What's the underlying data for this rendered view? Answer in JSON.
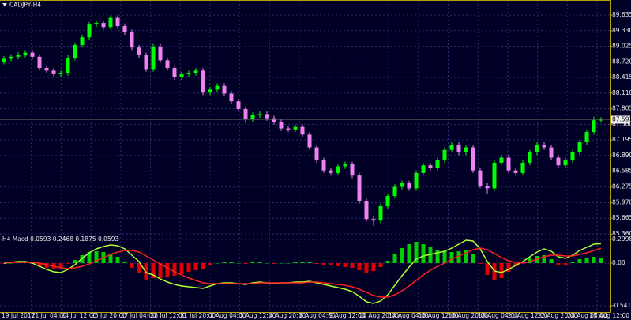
{
  "chart_data": [
    {
      "type": "candlestick",
      "title": "CADJPY,H4",
      "up_color": "#00ff00",
      "down_color": "#ee82ee",
      "grid": true,
      "current_price": 87.591,
      "ylim": [
        85.36,
        89.898
      ],
      "yticks": [
        89.635,
        {
          "value": 89.33,
          "label": "89.330"
        },
        89.025,
        {
          "value": 88.72,
          "label": "88.720"
        },
        88.415,
        {
          "value": 88.11,
          "label": "88.110"
        },
        87.805,
        {
          "value": 87.5,
          "label": "87.500"
        },
        87.195,
        {
          "value": 86.89,
          "label": "86.890"
        },
        86.585,
        86.275,
        {
          "value": 85.97,
          "label": "85.970"
        },
        85.665,
        {
          "value": 85.36,
          "label": "85.360"
        }
      ],
      "xlabels": [
        "19 Jul 2017",
        "21 Jul 04:00",
        "24 Jul 12:00",
        "25 Jul 20:00",
        "27 Jul 04:00",
        "28 Jul 12:00",
        "31 Jul 20:00",
        "2 Aug 04:00",
        "3 Aug 12:00",
        "4 Aug 20:00",
        "8 Aug 04:00",
        "9 Aug 12:00",
        "10 Aug 20:00",
        "14 Aug 04:00",
        "15 Aug 12:00",
        "16 Aug 20:00",
        "18 Aug 04:00",
        "21 Aug 12:00",
        "22 Aug 20:00",
        "24 Aug 04:00",
        "25 Aug 12:00"
      ],
      "candles": [
        [
          88.72,
          88.83,
          88.67,
          88.78
        ],
        [
          88.78,
          88.87,
          88.73,
          88.82
        ],
        [
          88.82,
          88.91,
          88.77,
          88.86
        ],
        [
          88.86,
          88.95,
          88.81,
          88.9
        ],
        [
          88.9,
          88.95,
          88.77,
          88.82
        ],
        [
          88.82,
          88.87,
          88.55,
          88.6
        ],
        [
          88.6,
          88.65,
          88.5,
          88.55
        ],
        [
          88.55,
          88.6,
          88.43,
          88.48
        ],
        [
          88.48,
          88.55,
          88.43,
          88.5
        ],
        [
          88.5,
          88.85,
          88.45,
          88.8
        ],
        [
          88.8,
          89.1,
          88.75,
          89.05
        ],
        [
          89.05,
          89.25,
          89.0,
          89.2
        ],
        [
          89.2,
          89.5,
          89.15,
          89.45
        ],
        [
          89.45,
          89.53,
          89.4,
          89.48
        ],
        [
          89.48,
          89.53,
          89.35,
          89.4
        ],
        [
          89.4,
          89.63,
          89.35,
          89.58
        ],
        [
          89.58,
          89.63,
          89.37,
          89.42
        ],
        [
          89.42,
          89.47,
          89.25,
          89.3
        ],
        [
          89.3,
          89.35,
          88.95,
          89.0
        ],
        [
          89.0,
          89.05,
          88.8,
          88.85
        ],
        [
          88.85,
          88.9,
          88.53,
          88.58
        ],
        [
          88.58,
          89.07,
          88.53,
          89.02
        ],
        [
          89.02,
          89.07,
          88.7,
          88.75
        ],
        [
          88.75,
          88.8,
          88.55,
          88.6
        ],
        [
          88.6,
          88.65,
          88.37,
          88.42
        ],
        [
          88.42,
          88.53,
          88.37,
          88.48
        ],
        [
          88.48,
          88.55,
          88.43,
          88.5
        ],
        [
          88.5,
          88.6,
          88.45,
          88.55
        ],
        [
          88.55,
          88.6,
          88.07,
          88.12
        ],
        [
          88.12,
          88.23,
          88.07,
          88.18
        ],
        [
          88.18,
          88.3,
          88.13,
          88.25
        ],
        [
          88.25,
          88.3,
          88.05,
          88.1
        ],
        [
          88.1,
          88.15,
          87.9,
          87.95
        ],
        [
          87.95,
          88.0,
          87.75,
          87.8
        ],
        [
          87.8,
          87.85,
          87.55,
          87.6
        ],
        [
          87.6,
          87.73,
          87.55,
          87.68
        ],
        [
          87.68,
          87.75,
          87.63,
          87.7
        ],
        [
          87.7,
          87.75,
          87.57,
          87.62
        ],
        [
          87.62,
          87.67,
          87.5,
          87.55
        ],
        [
          87.55,
          87.6,
          87.37,
          87.42
        ],
        [
          87.42,
          87.47,
          87.35,
          87.4
        ],
        [
          87.4,
          87.5,
          87.35,
          87.45
        ],
        [
          87.45,
          87.5,
          87.25,
          87.3
        ],
        [
          87.3,
          87.35,
          87.0,
          87.05
        ],
        [
          87.05,
          87.1,
          86.75,
          86.8
        ],
        [
          86.8,
          86.85,
          86.55,
          86.6
        ],
        [
          86.6,
          86.65,
          86.5,
          86.55
        ],
        [
          86.55,
          86.73,
          86.5,
          86.68
        ],
        [
          86.68,
          86.77,
          86.63,
          86.72
        ],
        [
          86.72,
          86.77,
          86.45,
          86.5
        ],
        [
          86.5,
          86.55,
          85.95,
          86.0
        ],
        [
          86.0,
          86.05,
          85.6,
          85.65
        ],
        [
          85.65,
          85.7,
          85.52,
          85.62
        ],
        [
          85.62,
          85.95,
          85.57,
          85.9
        ],
        [
          85.9,
          86.15,
          85.85,
          86.1
        ],
        [
          86.1,
          86.33,
          86.05,
          86.28
        ],
        [
          86.28,
          86.4,
          86.23,
          86.35
        ],
        [
          86.35,
          86.4,
          86.2,
          86.25
        ],
        [
          86.25,
          86.6,
          86.2,
          86.55
        ],
        [
          86.55,
          86.75,
          86.5,
          86.7
        ],
        [
          86.7,
          86.75,
          86.6,
          86.65
        ],
        [
          86.65,
          86.85,
          86.6,
          86.8
        ],
        [
          86.8,
          87.05,
          86.75,
          87.0
        ],
        [
          87.0,
          87.15,
          86.95,
          87.1
        ],
        [
          87.1,
          87.15,
          86.9,
          86.95
        ],
        [
          86.95,
          87.1,
          86.9,
          87.05
        ],
        [
          87.05,
          87.1,
          86.55,
          86.6
        ],
        [
          86.6,
          86.65,
          86.25,
          86.3
        ],
        [
          86.3,
          86.35,
          86.15,
          86.25
        ],
        [
          86.25,
          86.8,
          86.2,
          86.75
        ],
        [
          86.75,
          86.9,
          86.7,
          86.85
        ],
        [
          86.85,
          86.9,
          86.55,
          86.6
        ],
        [
          86.6,
          86.65,
          86.5,
          86.55
        ],
        [
          86.55,
          86.8,
          86.5,
          86.75
        ],
        [
          86.75,
          87.0,
          86.7,
          86.95
        ],
        [
          86.95,
          87.15,
          86.9,
          87.1
        ],
        [
          87.1,
          87.15,
          87.0,
          87.05
        ],
        [
          87.05,
          87.1,
          86.8,
          86.85
        ],
        [
          86.85,
          86.9,
          86.65,
          86.7
        ],
        [
          86.7,
          86.85,
          86.65,
          86.8
        ],
        [
          86.8,
          87.0,
          86.75,
          86.95
        ],
        [
          86.95,
          87.2,
          86.9,
          87.15
        ],
        [
          87.15,
          87.4,
          87.1,
          87.35
        ],
        [
          87.35,
          87.65,
          87.3,
          87.58
        ],
        [
          87.58,
          87.64,
          87.53,
          87.591
        ]
      ]
    },
    {
      "type": "macd",
      "title": "H4 Macd 0.0593 0.2468 0.1875 0.0593",
      "grid": true,
      "ylim": [
        -0.62,
        0.34
      ],
      "yticks": [
        0.2998,
        {
          "value": 0,
          "label": "0.00"
        },
        -0.541
      ],
      "histogram": {
        "up_color": "#00d000",
        "down_color": "#e00000",
        "values": [
          -0.01,
          0.0,
          0.01,
          0.01,
          -0.01,
          -0.04,
          -0.06,
          -0.07,
          -0.06,
          -0.01,
          0.04,
          0.1,
          0.14,
          0.15,
          0.14,
          0.12,
          0.08,
          0.02,
          -0.06,
          -0.12,
          -0.21,
          -0.19,
          -0.19,
          -0.18,
          -0.16,
          -0.14,
          -0.11,
          -0.09,
          -0.07,
          -0.03,
          0.0,
          0.01,
          0.01,
          0.0,
          -0.01,
          0.01,
          0.01,
          0.0,
          -0.01,
          0.0,
          0.0,
          0.01,
          0.01,
          0.01,
          -0.01,
          -0.02,
          -0.03,
          -0.04,
          -0.05,
          -0.06,
          -0.09,
          -0.12,
          -0.1,
          -0.05,
          0.03,
          0.12,
          0.19,
          0.24,
          0.27,
          0.24,
          0.2,
          0.17,
          0.15,
          0.14,
          0.15,
          0.16,
          0.11,
          -0.01,
          -0.15,
          -0.22,
          -0.19,
          -0.11,
          -0.04,
          0.02,
          0.06,
          0.09,
          0.1,
          0.05,
          -0.02,
          -0.03,
          0.01,
          0.05,
          0.07,
          0.08,
          0.0593
        ]
      },
      "lines": [
        {
          "color": "#adff2f",
          "values": [
            0.0,
            0.01,
            0.02,
            0.02,
            0.0,
            -0.04,
            -0.08,
            -0.11,
            -0.12,
            -0.08,
            -0.02,
            0.06,
            0.13,
            0.18,
            0.21,
            0.23,
            0.22,
            0.18,
            0.1,
            0.02,
            -0.12,
            -0.15,
            -0.2,
            -0.24,
            -0.27,
            -0.29,
            -0.3,
            -0.31,
            -0.32,
            -0.29,
            -0.26,
            -0.25,
            -0.25,
            -0.26,
            -0.27,
            -0.25,
            -0.24,
            -0.25,
            -0.26,
            -0.25,
            -0.25,
            -0.24,
            -0.24,
            -0.23,
            -0.25,
            -0.27,
            -0.29,
            -0.31,
            -0.33,
            -0.36,
            -0.42,
            -0.49,
            -0.51,
            -0.48,
            -0.4,
            -0.28,
            -0.16,
            -0.05,
            0.05,
            0.09,
            0.11,
            0.13,
            0.15,
            0.19,
            0.24,
            0.29,
            0.28,
            0.18,
            0.02,
            -0.1,
            -0.12,
            -0.08,
            -0.03,
            0.02,
            0.08,
            0.14,
            0.18,
            0.15,
            0.08,
            0.06,
            0.1,
            0.16,
            0.2,
            0.24,
            0.2468
          ]
        },
        {
          "color": "#ff2020",
          "values": [
            0.01,
            0.01,
            0.01,
            0.01,
            0.01,
            0.0,
            -0.02,
            -0.04,
            -0.06,
            -0.07,
            -0.06,
            -0.04,
            -0.01,
            0.03,
            0.07,
            0.11,
            0.14,
            0.16,
            0.16,
            0.14,
            0.09,
            0.04,
            -0.01,
            -0.06,
            -0.11,
            -0.15,
            -0.19,
            -0.22,
            -0.25,
            -0.26,
            -0.26,
            -0.26,
            -0.26,
            -0.26,
            -0.26,
            -0.26,
            -0.25,
            -0.25,
            -0.25,
            -0.25,
            -0.25,
            -0.25,
            -0.25,
            -0.24,
            -0.24,
            -0.25,
            -0.26,
            -0.27,
            -0.28,
            -0.3,
            -0.33,
            -0.37,
            -0.41,
            -0.43,
            -0.43,
            -0.4,
            -0.35,
            -0.29,
            -0.22,
            -0.15,
            -0.09,
            -0.04,
            0.0,
            0.05,
            0.09,
            0.13,
            0.17,
            0.19,
            0.17,
            0.12,
            0.07,
            0.03,
            0.01,
            0.0,
            0.02,
            0.05,
            0.08,
            0.1,
            0.1,
            0.09,
            0.09,
            0.11,
            0.13,
            0.16,
            0.1875
          ]
        }
      ]
    }
  ]
}
